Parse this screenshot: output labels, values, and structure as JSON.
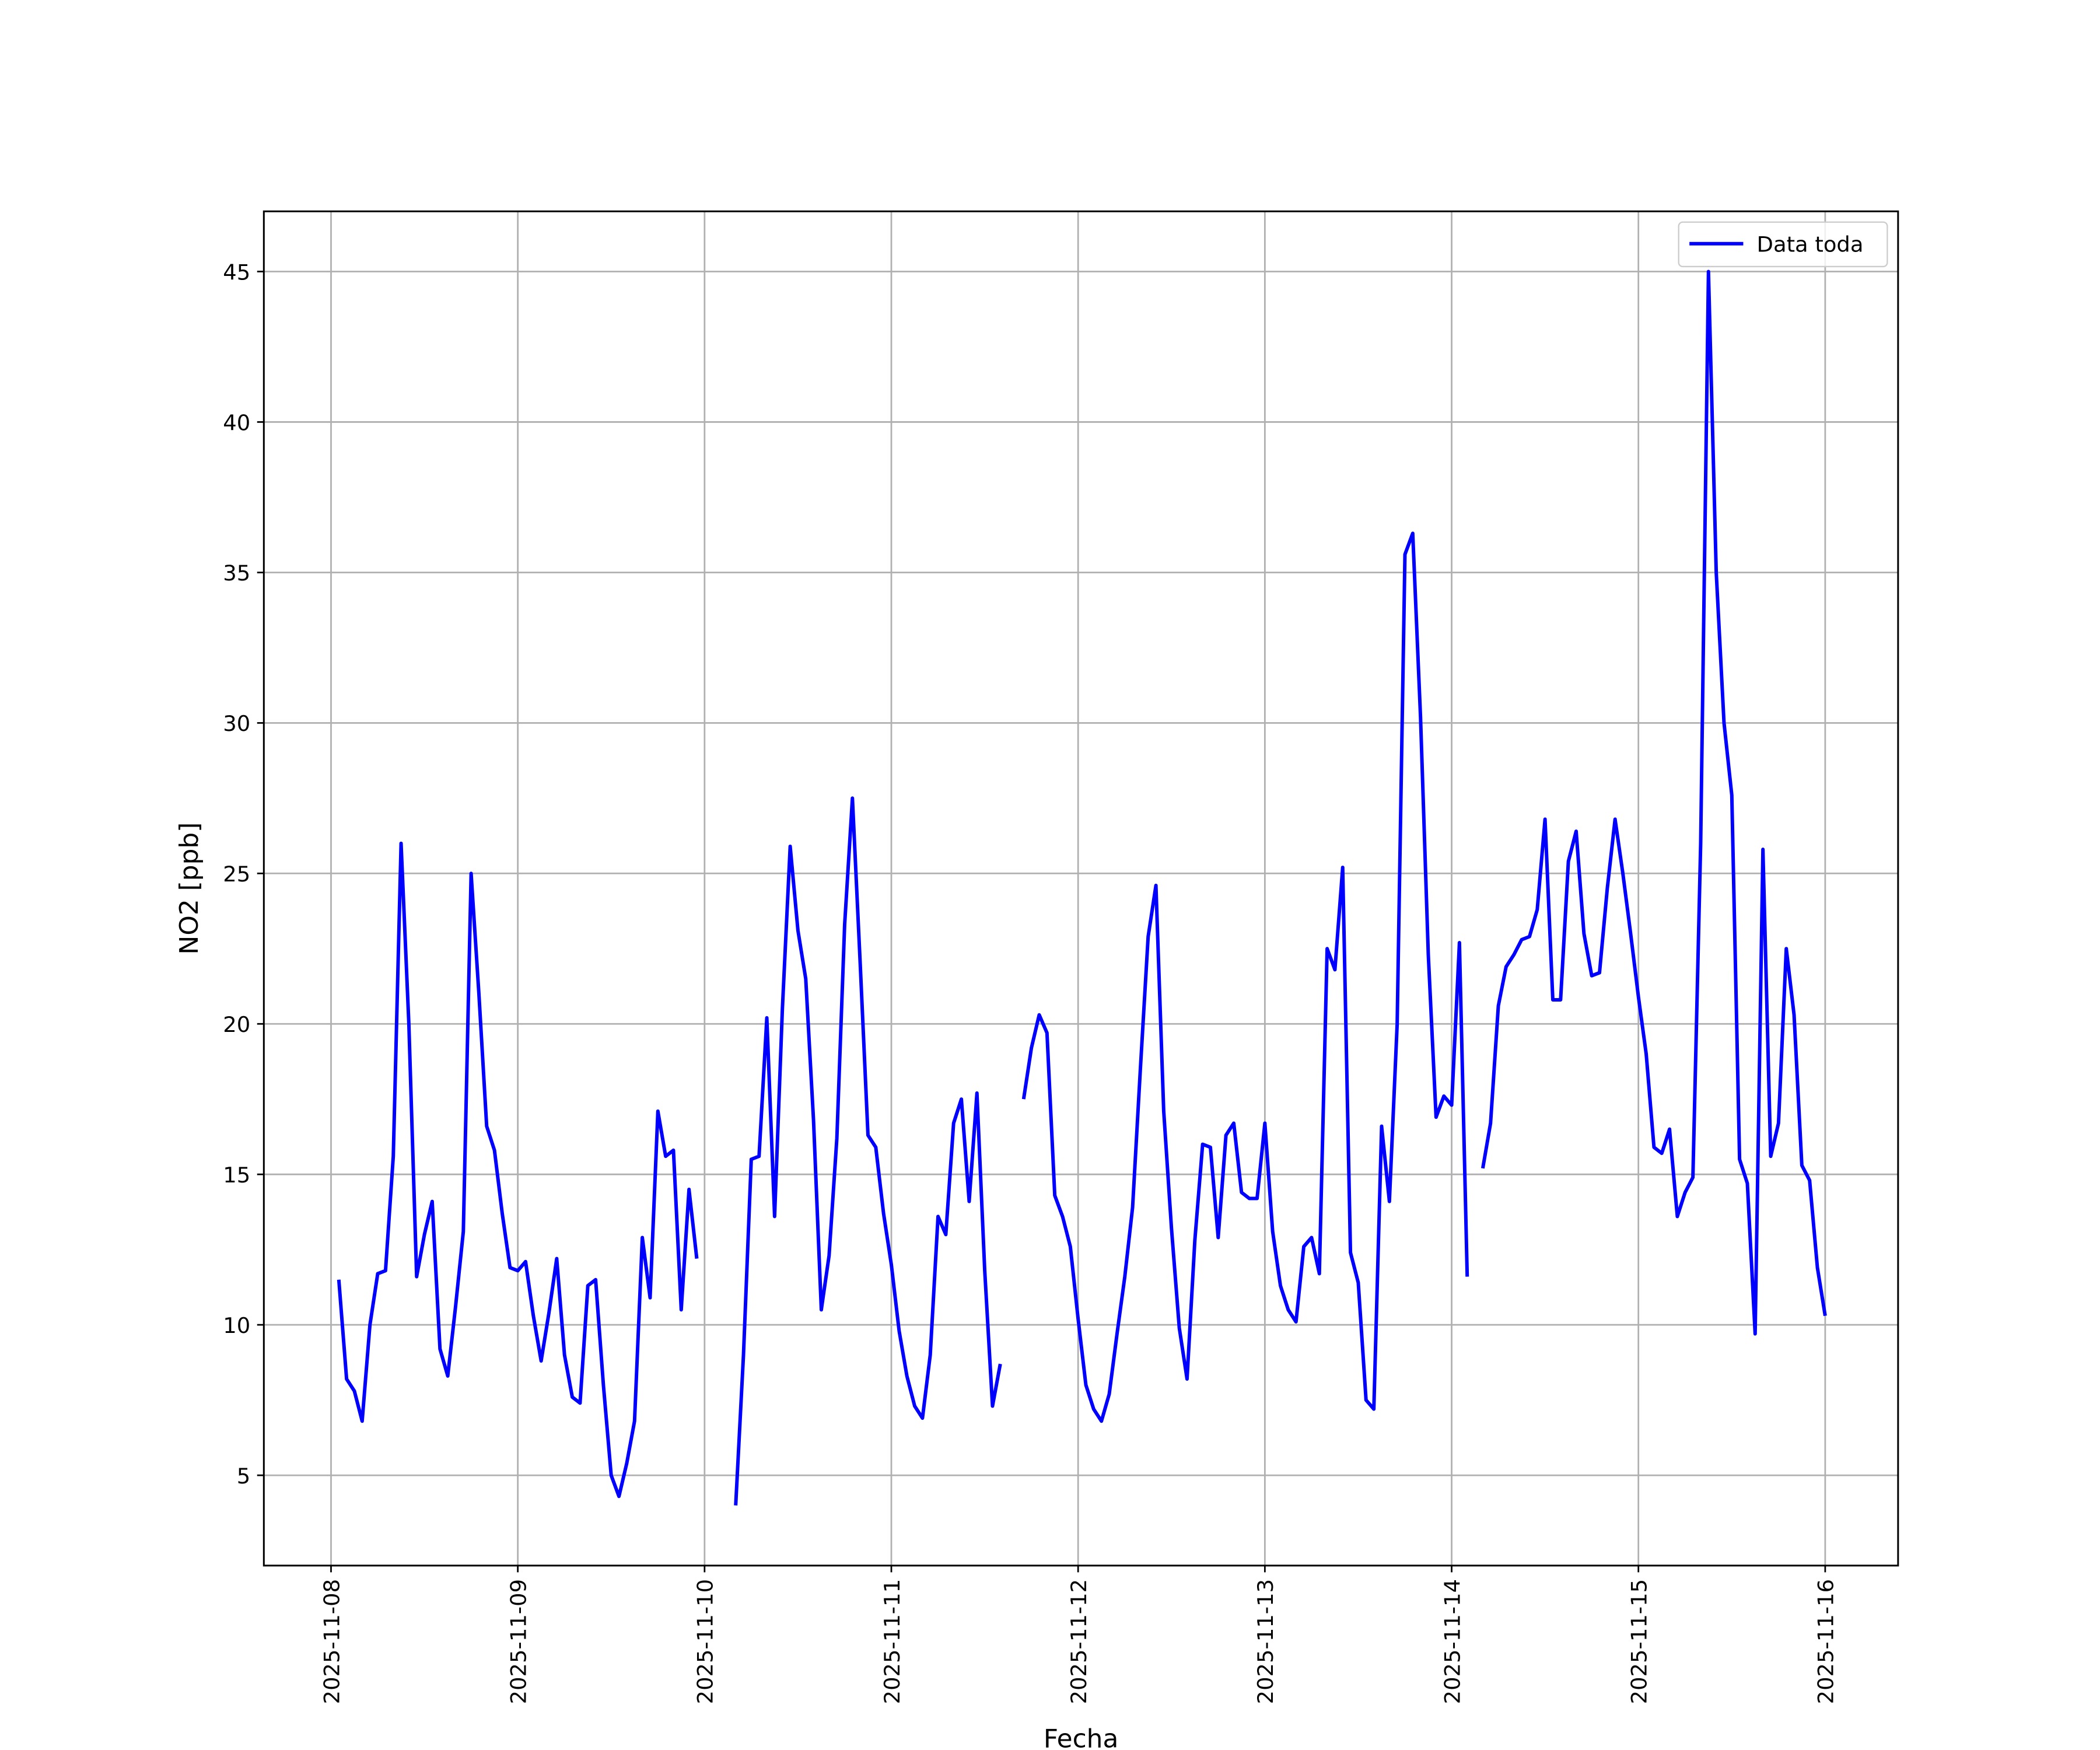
{
  "chart_data": {
    "type": "line",
    "xlabel": "Fecha",
    "ylabel": "NO2 [ppb]",
    "x": [
      "2025-11-08 01:00",
      "2025-11-08 02:00",
      "2025-11-08 03:00",
      "2025-11-08 04:00",
      "2025-11-08 05:00",
      "2025-11-08 06:00",
      "2025-11-08 07:00",
      "2025-11-08 08:00",
      "2025-11-08 09:00",
      "2025-11-08 10:00",
      "2025-11-08 11:00",
      "2025-11-08 12:00",
      "2025-11-08 13:00",
      "2025-11-08 14:00",
      "2025-11-08 15:00",
      "2025-11-08 16:00",
      "2025-11-08 17:00",
      "2025-11-08 18:00",
      "2025-11-08 19:00",
      "2025-11-08 20:00",
      "2025-11-08 21:00",
      "2025-11-08 22:00",
      "2025-11-08 23:00",
      "2025-11-09 00:00",
      "2025-11-09 01:00",
      "2025-11-09 02:00",
      "2025-11-09 03:00",
      "2025-11-09 04:00",
      "2025-11-09 05:00",
      "2025-11-09 06:00",
      "2025-11-09 07:00",
      "2025-11-09 08:00",
      "2025-11-09 09:00",
      "2025-11-09 10:00",
      "2025-11-09 11:00",
      "2025-11-09 12:00",
      "2025-11-09 13:00",
      "2025-11-09 14:00",
      "2025-11-09 15:00",
      "2025-11-09 16:00",
      "2025-11-09 17:00",
      "2025-11-09 18:00",
      "2025-11-09 19:00",
      "2025-11-09 20:00",
      "2025-11-09 21:00",
      "2025-11-09 22:00",
      "2025-11-09 23:00",
      "2025-11-10 00:00",
      "2025-11-10 01:00",
      "2025-11-10 02:00",
      "2025-11-10 03:00",
      "2025-11-10 04:00",
      "2025-11-10 05:00",
      "2025-11-10 06:00",
      "2025-11-10 07:00",
      "2025-11-10 08:00",
      "2025-11-10 09:00",
      "2025-11-10 10:00",
      "2025-11-10 11:00",
      "2025-11-10 12:00",
      "2025-11-10 13:00",
      "2025-11-10 14:00",
      "2025-11-10 15:00",
      "2025-11-10 16:00",
      "2025-11-10 17:00",
      "2025-11-10 18:00",
      "2025-11-10 19:00",
      "2025-11-10 20:00",
      "2025-11-10 21:00",
      "2025-11-10 22:00",
      "2025-11-10 23:00",
      "2025-11-11 00:00",
      "2025-11-11 01:00",
      "2025-11-11 02:00",
      "2025-11-11 03:00",
      "2025-11-11 04:00",
      "2025-11-11 05:00",
      "2025-11-11 06:00",
      "2025-11-11 07:00",
      "2025-11-11 08:00",
      "2025-11-11 09:00",
      "2025-11-11 10:00",
      "2025-11-11 11:00",
      "2025-11-11 12:00",
      "2025-11-11 13:00",
      "2025-11-11 14:00",
      "2025-11-11 15:00",
      "2025-11-11 16:00",
      "2025-11-11 17:00",
      "2025-11-11 18:00",
      "2025-11-11 19:00",
      "2025-11-11 20:00",
      "2025-11-11 21:00",
      "2025-11-11 22:00",
      "2025-11-11 23:00",
      "2025-11-12 00:00",
      "2025-11-12 01:00",
      "2025-11-12 02:00",
      "2025-11-12 03:00",
      "2025-11-12 04:00",
      "2025-11-12 05:00",
      "2025-11-12 06:00",
      "2025-11-12 07:00",
      "2025-11-12 08:00",
      "2025-11-12 09:00",
      "2025-11-12 10:00",
      "2025-11-12 11:00",
      "2025-11-12 12:00",
      "2025-11-12 13:00",
      "2025-11-12 14:00",
      "2025-11-12 15:00",
      "2025-11-12 16:00",
      "2025-11-12 17:00",
      "2025-11-12 18:00",
      "2025-11-12 19:00",
      "2025-11-12 20:00",
      "2025-11-12 21:00",
      "2025-11-12 22:00",
      "2025-11-12 23:00",
      "2025-11-13 00:00",
      "2025-11-13 01:00",
      "2025-11-13 02:00",
      "2025-11-13 03:00",
      "2025-11-13 04:00",
      "2025-11-13 05:00",
      "2025-11-13 06:00",
      "2025-11-13 07:00",
      "2025-11-13 08:00",
      "2025-11-13 09:00",
      "2025-11-13 10:00",
      "2025-11-13 11:00",
      "2025-11-13 12:00",
      "2025-11-13 13:00",
      "2025-11-13 14:00",
      "2025-11-13 15:00",
      "2025-11-13 16:00",
      "2025-11-13 17:00",
      "2025-11-13 18:00",
      "2025-11-13 19:00",
      "2025-11-13 20:00",
      "2025-11-13 21:00",
      "2025-11-13 22:00",
      "2025-11-13 23:00",
      "2025-11-14 00:00",
      "2025-11-14 01:00",
      "2025-11-14 02:00",
      "2025-11-14 03:00",
      "2025-11-14 04:00",
      "2025-11-14 05:00",
      "2025-11-14 06:00",
      "2025-11-14 07:00",
      "2025-11-14 08:00",
      "2025-11-14 09:00",
      "2025-11-14 10:00",
      "2025-11-14 11:00",
      "2025-11-14 12:00",
      "2025-11-14 13:00",
      "2025-11-14 14:00",
      "2025-11-14 15:00",
      "2025-11-14 16:00",
      "2025-11-14 17:00",
      "2025-11-14 18:00",
      "2025-11-14 19:00",
      "2025-11-14 20:00",
      "2025-11-14 21:00",
      "2025-11-14 22:00",
      "2025-11-14 23:00",
      "2025-11-15 00:00",
      "2025-11-15 01:00",
      "2025-11-15 02:00",
      "2025-11-15 03:00",
      "2025-11-15 04:00",
      "2025-11-15 05:00",
      "2025-11-15 06:00",
      "2025-11-15 07:00",
      "2025-11-15 08:00",
      "2025-11-15 09:00",
      "2025-11-15 10:00",
      "2025-11-15 11:00",
      "2025-11-15 12:00",
      "2025-11-15 13:00",
      "2025-11-15 14:00",
      "2025-11-15 15:00",
      "2025-11-15 16:00",
      "2025-11-15 17:00",
      "2025-11-15 18:00",
      "2025-11-15 19:00",
      "2025-11-15 20:00",
      "2025-11-15 21:00",
      "2025-11-15 22:00",
      "2025-11-15 23:00",
      "2025-11-16 00:00"
    ],
    "series": [
      {
        "name": "Data toda",
        "color": "#0000ff",
        "values": [
          11.5,
          8.2,
          7.8,
          6.8,
          10,
          11.7,
          11.8,
          15.6,
          26,
          20,
          11.6,
          13,
          14.1,
          9.2,
          8.3,
          10.6,
          13.1,
          25,
          21,
          16.6,
          15.8,
          13.7,
          11.9,
          11.8,
          12.1,
          10.3,
          8.8,
          10.4,
          12.2,
          9,
          7.6,
          7.4,
          11.3,
          11.5,
          8,
          5,
          4.3,
          5.4,
          6.8,
          12.9,
          10.9,
          17.1,
          15.6,
          15.8,
          10.5,
          14.5,
          12.2,
          null,
          null,
          null,
          null,
          4,
          9,
          15.5,
          15.6,
          20.2,
          13.6,
          20.5,
          25.9,
          23.1,
          21.5,
          16.8,
          10.5,
          12.3,
          16.2,
          23.3,
          27.5,
          22,
          16.3,
          15.9,
          13.7,
          12,
          9.8,
          8.3,
          7.3,
          6.9,
          9,
          13.6,
          13,
          16.7,
          17.5,
          14.1,
          17.7,
          11.8,
          7.3,
          8.7,
          null,
          null,
          17.5,
          19.2,
          20.3,
          19.7,
          14.3,
          13.6,
          12.6,
          10.2,
          8,
          7.2,
          6.8,
          7.7,
          9.7,
          11.6,
          13.9,
          18.5,
          22.9,
          24.6,
          17.1,
          13.2,
          9.9,
          8.2,
          12.8,
          16,
          15.9,
          12.9,
          16.3,
          16.7,
          14.4,
          14.2,
          14.2,
          16.7,
          13.1,
          11.3,
          10.5,
          10.1,
          12.6,
          12.9,
          11.7,
          22.5,
          21.8,
          25.2,
          12.4,
          11.4,
          7.5,
          7.2,
          16.6,
          14.1,
          20,
          35.6,
          36.3,
          30.2,
          22.3,
          16.9,
          17.6,
          17.3,
          22.7,
          11.6,
          null,
          15.2,
          16.7,
          20.6,
          21.9,
          22.3,
          22.8,
          22.9,
          23.8,
          26.8,
          20.8,
          20.8,
          25.4,
          26.4,
          23,
          21.6,
          21.7,
          24.5,
          26.8,
          25,
          23,
          20.9,
          19,
          15.9,
          15.7,
          16.5,
          13.6,
          14.4,
          14.9,
          26,
          45,
          35,
          30,
          27.6,
          15.5,
          14.7,
          9.7,
          25.8,
          15.6,
          16.7,
          22.5,
          20.3,
          15.3,
          14.8,
          11.9,
          10.3
        ]
      }
    ],
    "xlim": [
      "2025-11-07 15:22",
      "2025-11-16 09:22"
    ],
    "xticks": [
      "2025-11-08",
      "2025-11-09",
      "2025-11-10",
      "2025-11-11",
      "2025-11-12",
      "2025-11-13",
      "2025-11-14",
      "2025-11-15",
      "2025-11-16"
    ],
    "ylim": [
      2,
      47
    ],
    "yticks": [
      5,
      10,
      15,
      20,
      25,
      30,
      35,
      40,
      45
    ],
    "grid": true,
    "legend": "upper right"
  }
}
